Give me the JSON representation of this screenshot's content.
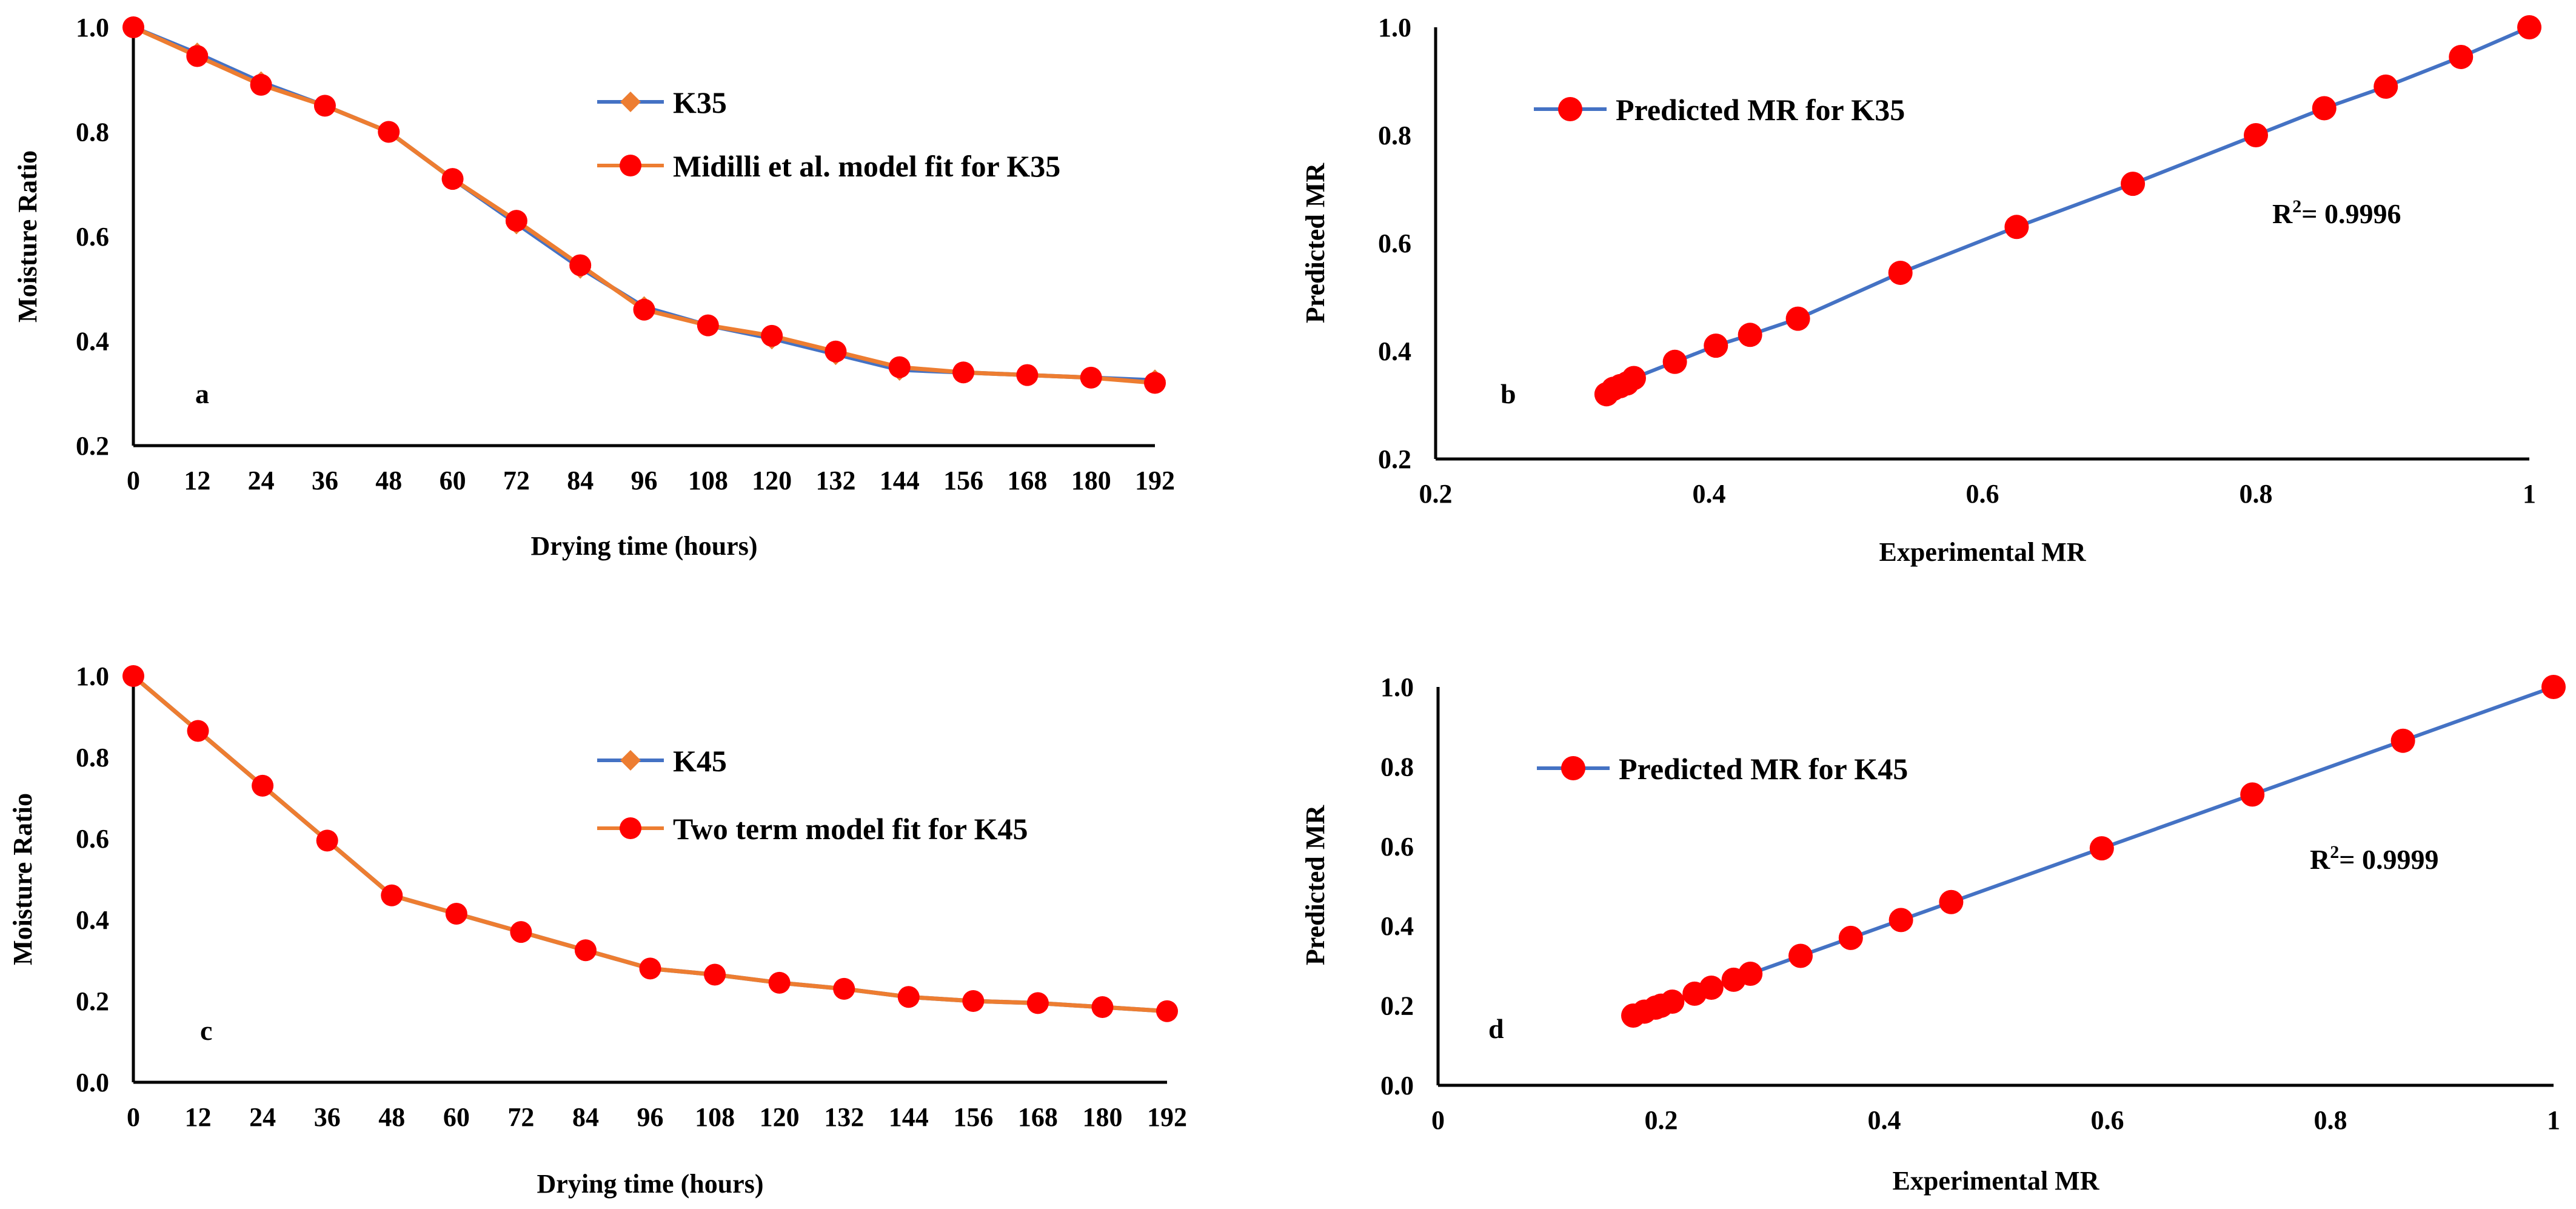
{
  "colors": {
    "blue": "#4472C4",
    "orange": "#ED7D31",
    "red": "#FF0000"
  },
  "chart_data": [
    {
      "id": "a",
      "type": "line",
      "panel_label": "a",
      "xlabel": "Drying time (hours)",
      "ylabel": "Moisture Ratio",
      "categories": [
        "0",
        "12",
        "24",
        "36",
        "48",
        "60",
        "72",
        "84",
        "96",
        "108",
        "120",
        "132",
        "144",
        "156",
        "168",
        "180",
        "192"
      ],
      "ylim": [
        0.2,
        1.0
      ],
      "yticks": [
        "0.2",
        "0.4",
        "0.6",
        "0.8",
        "1.0"
      ],
      "series": [
        {
          "name": "K35",
          "marker": "diamond",
          "color": "blue",
          "values": [
            1.0,
            0.95,
            0.895,
            0.85,
            0.8,
            0.71,
            0.625,
            0.54,
            0.465,
            0.43,
            0.405,
            0.375,
            0.345,
            0.34,
            0.335,
            0.33,
            0.325
          ]
        },
        {
          "name": "Midilli et al. model fit for K35",
          "marker": "circle",
          "color": "orange",
          "values": [
            1.0,
            0.945,
            0.89,
            0.85,
            0.8,
            0.71,
            0.63,
            0.545,
            0.46,
            0.43,
            0.41,
            0.38,
            0.35,
            0.34,
            0.335,
            0.33,
            0.32
          ]
        }
      ]
    },
    {
      "id": "b",
      "type": "scatter",
      "panel_label": "b",
      "xlabel": "Experimental MR",
      "ylabel": "Predicted MR",
      "xlim": [
        0.2,
        1.0
      ],
      "ylim": [
        0.2,
        1.0
      ],
      "xticks": [
        "0.2",
        "0.4",
        "0.6",
        "0.8",
        "1"
      ],
      "yticks": [
        "0.2",
        "0.4",
        "0.6",
        "0.8",
        "1.0"
      ],
      "annotation": {
        "prefix": "R",
        "sup": "2",
        "value": "= 0.9996"
      },
      "series": [
        {
          "name": "Predicted MR for K35",
          "x": [
            1.0,
            0.95,
            0.895,
            0.85,
            0.8,
            0.71,
            0.625,
            0.54,
            0.465,
            0.43,
            0.405,
            0.375,
            0.345,
            0.34,
            0.335,
            0.33,
            0.325
          ],
          "y": [
            1.0,
            0.945,
            0.89,
            0.85,
            0.8,
            0.71,
            0.63,
            0.545,
            0.46,
            0.43,
            0.41,
            0.38,
            0.35,
            0.34,
            0.335,
            0.33,
            0.32
          ]
        }
      ]
    },
    {
      "id": "c",
      "type": "line",
      "panel_label": "c",
      "xlabel": "Drying time (hours)",
      "ylabel": "Moisture Ratio",
      "categories": [
        "0",
        "12",
        "24",
        "36",
        "48",
        "60",
        "72",
        "84",
        "96",
        "108",
        "120",
        "132",
        "144",
        "156",
        "168",
        "180",
        "192"
      ],
      "ylim": [
        0.0,
        1.0
      ],
      "yticks": [
        "0.0",
        "0.2",
        "0.4",
        "0.6",
        "0.8",
        "1.0"
      ],
      "series": [
        {
          "name": "K45",
          "marker": "diamond",
          "color": "blue",
          "values": [
            1.0,
            0.865,
            0.73,
            0.595,
            0.46,
            0.415,
            0.37,
            0.325,
            0.28,
            0.265,
            0.245,
            0.23,
            0.21,
            0.2,
            0.195,
            0.185,
            0.175
          ]
        },
        {
          "name": "Two term model fit for K45",
          "marker": "circle",
          "color": "orange",
          "values": [
            1.0,
            0.865,
            0.73,
            0.595,
            0.46,
            0.415,
            0.37,
            0.325,
            0.28,
            0.265,
            0.245,
            0.23,
            0.21,
            0.2,
            0.195,
            0.185,
            0.175
          ]
        }
      ]
    },
    {
      "id": "d",
      "type": "scatter",
      "panel_label": "d",
      "xlabel": "Experimental MR",
      "ylabel": "Predicted MR",
      "xlim": [
        0.0,
        1.0
      ],
      "ylim": [
        0.0,
        1.0
      ],
      "xticks": [
        "0",
        "0.2",
        "0.4",
        "0.6",
        "0.8",
        "1"
      ],
      "yticks": [
        "0.0",
        "0.2",
        "0.4",
        "0.6",
        "0.8",
        "1.0"
      ],
      "annotation": {
        "prefix": "R",
        "sup": "2",
        "value": "= 0.9999"
      },
      "series": [
        {
          "name": "Predicted MR for K45",
          "x": [
            1.0,
            0.865,
            0.73,
            0.595,
            0.46,
            0.415,
            0.37,
            0.325,
            0.28,
            0.265,
            0.245,
            0.23,
            0.21,
            0.2,
            0.195,
            0.185,
            0.175
          ],
          "y": [
            1.0,
            0.865,
            0.73,
            0.595,
            0.46,
            0.415,
            0.37,
            0.325,
            0.28,
            0.265,
            0.245,
            0.23,
            0.21,
            0.2,
            0.195,
            0.185,
            0.175
          ]
        }
      ]
    }
  ]
}
